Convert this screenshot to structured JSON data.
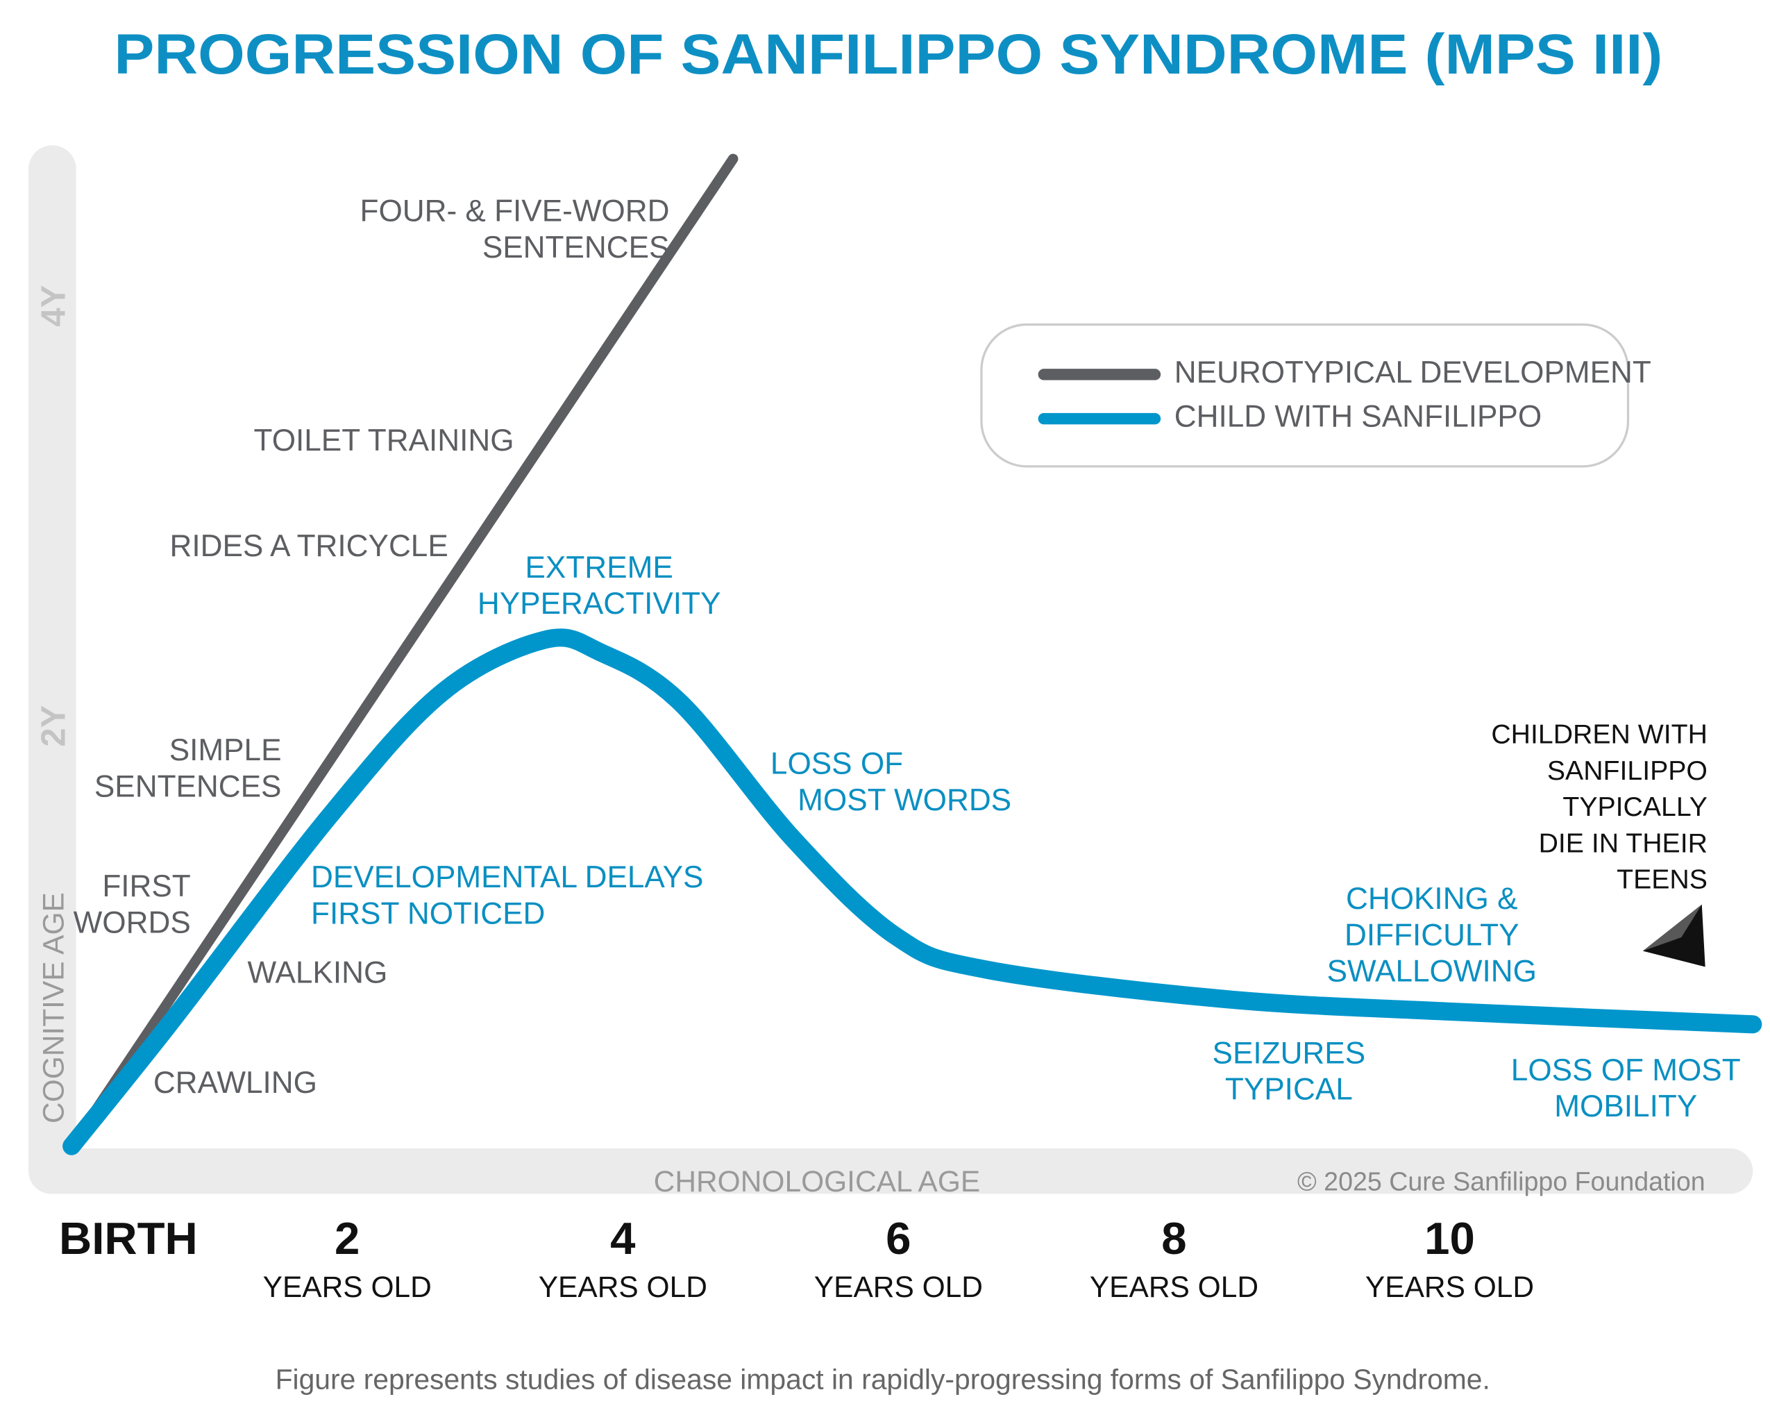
{
  "chart_data": {
    "type": "line",
    "title": "PROGRESSION OF SANFILIPPO SYNDROME (MPS III)",
    "x_label": "CHRONOLOGICAL AGE",
    "y_label": "COGNITIVE AGE",
    "x_tick_unit": "YEARS OLD",
    "xlim": [
      0,
      12.2
    ],
    "ylim": [
      0,
      4.7
    ],
    "xticks": [
      {
        "value": 0,
        "label": "BIRTH"
      },
      2,
      4,
      6,
      8,
      10
    ],
    "yticks": [
      {
        "value": 2,
        "label": "2Y"
      },
      {
        "value": 4,
        "label": "4Y"
      }
    ],
    "series": [
      {
        "name": "NEUROTYPICAL DEVELOPMENT",
        "color": "#5d5e62",
        "x": [
          0,
          4.8
        ],
        "values": [
          0,
          4.7
        ]
      },
      {
        "name": "CHILD WITH SANFILIPPO",
        "color": "#0096cc",
        "x": [
          0,
          0.72,
          1.87,
          2.69,
          3.43,
          3.84,
          4.42,
          5.24,
          5.98,
          6.64,
          8.37,
          10.02,
          12.2
        ],
        "values": [
          0,
          0.59,
          1.57,
          2.16,
          2.41,
          2.35,
          2.11,
          1.46,
          1.0,
          0.84,
          0.7,
          0.64,
          0.58
        ]
      }
    ],
    "annotations": [
      {
        "text": [
          "FOUR- & FIVE-WORD",
          "SENTENCES"
        ]
      },
      {
        "text": [
          "TOILET TRAINING"
        ]
      },
      {
        "text": [
          "RIDES A TRICYCLE"
        ]
      },
      {
        "text": [
          "SIMPLE",
          "SENTENCES"
        ]
      },
      {
        "text": [
          "FIRST",
          "WORDS"
        ]
      },
      {
        "text": [
          "WALKING"
        ]
      },
      {
        "text": [
          "CRAWLING"
        ]
      },
      {
        "text": [
          "EXTREME",
          "HYPERACTIVITY"
        ]
      },
      {
        "text": [
          "DEVELOPMENTAL DELAYS",
          "FIRST NOTICED"
        ]
      },
      {
        "text": [
          "LOSS OF",
          "MOST WORDS"
        ]
      },
      {
        "text": [
          "CHOKING &",
          "DIFFICULTY",
          "SWALLOWING"
        ]
      },
      {
        "text": [
          "SEIZURES",
          "TYPICAL"
        ]
      },
      {
        "text": [
          "LOSS OF MOST",
          "MOBILITY"
        ]
      },
      {
        "text": [
          "CHILDREN WITH",
          "SANFILIPPO",
          "TYPICALLY",
          "DIE IN THEIR",
          "TEENS"
        ]
      }
    ],
    "copyright": "© 2025 Cure Sanfilippo Foundation",
    "footnote": "Figure represents studies of disease impact in rapidly-progressing forms of Sanfilippo Syndrome."
  }
}
